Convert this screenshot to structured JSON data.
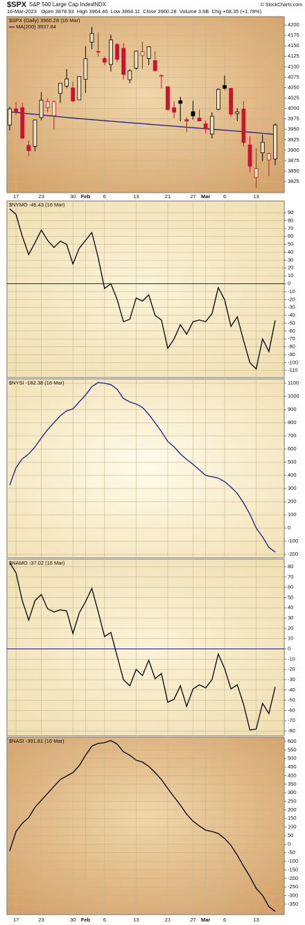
{
  "header": {
    "symbol": "$SPX",
    "name": "S&P 500 Large Cap Index",
    "exchange": "INDX",
    "credit": "© StockCharts.com",
    "quote": "16-Mar-2023   Open 3878.93  High 3964.46  Low 3864.11  Close 3960.28  Volume 3.6B  Chg +68.35 (+1.78%)"
  },
  "chart_data": [
    {
      "type": "candlestick",
      "legend": "$SPX (Daily) 3960.28 (16 Mar)",
      "categories": [
        null,
        "17",
        null,
        null,
        null,
        "23",
        null,
        null,
        null,
        null,
        "30",
        null,
        "Feb",
        null,
        null,
        "6",
        null,
        null,
        null,
        null,
        "13",
        null,
        null,
        null,
        null,
        "21",
        null,
        null,
        null,
        "27",
        null,
        "Mar",
        null,
        null,
        "6",
        null,
        null,
        null,
        null,
        "13",
        null,
        null,
        null
      ],
      "open": [
        3960.6,
        3999.28,
        4002.25,
        3911.84,
        3909.04,
        3978.14,
        4001.74,
        3982.71,
        4036.08,
        4053.72,
        4049.27,
        4020.85,
        4070.07,
        4158.68,
        4136.69,
        4119.57,
        4105.35,
        4153.47,
        4144.25,
        4068.92,
        4096.62,
        4126.7,
        4119.5,
        4114.75,
        4077.39,
        4052.35,
        4001.83,
        4018.6,
        3973.24,
        3992.36,
        3977.19,
        3963.34,
        3938.68,
        3998.02,
        4055.15,
        4048.26,
        3987.55,
        3998.66,
        3912.77,
        3835.12,
        3894.01,
        3876.74,
        3878.93
      ],
      "high": [
        4003.95,
        4015.39,
        4014.16,
        3922.94,
        3972.96,
        4039.31,
        4023.92,
        4019.55,
        4061.57,
        4094.21,
        4063.85,
        4077.16,
        4148.95,
        4195.44,
        4182.36,
        4124.63,
        4176.54,
        4156.85,
        4156.23,
        4094.36,
        4138.9,
        4159.77,
        4148.11,
        4136.54,
        4081.51,
        4052.35,
        4017.37,
        4028.3,
        3978.25,
        4018.05,
        3997.5,
        3971.73,
        3990.84,
        4048.29,
        4078.49,
        4050,
        4000.41,
        4017.81,
        3934.05,
        3905.05,
        3937.29,
        3894.26,
        3964.46
      ],
      "low": [
        3947.67,
        3984.57,
        3926.59,
        3885.54,
        3897.86,
        3971.64,
        3989.79,
        3949.06,
        4013.29,
        4048.7,
        4015.55,
        4020.44,
        4037.2,
        4141.88,
        4123.36,
        4103.98,
        4088.39,
        4111.67,
        4069.67,
        4060.79,
        4092.67,
        4095.01,
        4103.98,
        4089.43,
        4047.95,
        3995.19,
        3976.9,
        3969.19,
        3943.08,
        3973.55,
        3968.98,
        3939.05,
        3928.16,
        3995.17,
        4044.61,
        3980.31,
        3969.76,
        3908.7,
        3846.32,
        3808.86,
        3873.63,
        3838.24,
        3864.11
      ],
      "close": [
        3999.09,
        3990.97,
        3928.86,
        3898.85,
        3972.61,
        4019.81,
        4016.95,
        4016.22,
        4060.43,
        4070.56,
        4017.77,
        4076.6,
        4119.21,
        4179.76,
        4136.48,
        4111.08,
        4164,
        4117.86,
        4081.5,
        4090.46,
        4137.29,
        4136.13,
        4147.6,
        4090.41,
        4079.09,
        3997.34,
        3991.05,
        4012.32,
        3970.04,
        3982.24,
        3970.15,
        3951.39,
        3981.35,
        4045.64,
        4048.42,
        3986.37,
        3992.01,
        3918.32,
        3861.59,
        3855.76,
        3919.29,
        3891.93,
        3960.28
      ],
      "up_color": "#000000",
      "down_color": "#d0122c",
      "series": [
        {
          "name": "MA(200) 3937.84",
          "color": "#1c1c8c",
          "values": [
            3992,
            3990.5,
            3989,
            3987.5,
            3986,
            3984.5,
            3983,
            3981.5,
            3980,
            3978.6,
            3977.2,
            3975.8,
            3974.5,
            3973.2,
            3972,
            3970.8,
            3969.6,
            3968.4,
            3967.2,
            3966,
            3964.8,
            3963.6,
            3962.4,
            3961.2,
            3960,
            3958.8,
            3957.6,
            3956.4,
            3955.2,
            3954,
            3952.8,
            3951.6,
            3950.4,
            3949.2,
            3948,
            3946.8,
            3945.6,
            3944.4,
            3943.2,
            3942,
            3940.6,
            3939.2,
            3937.84
          ]
        }
      ],
      "ylim": [
        3798.5,
        4220
      ],
      "yticks": [
        3825,
        3850,
        3875,
        3900,
        3925,
        3950,
        3975,
        4000,
        4025,
        4050,
        4075,
        4100,
        4125,
        4150,
        4175,
        4200
      ],
      "grid": true
    },
    {
      "type": "line",
      "series": [
        {
          "name": "$NYMO -46.43 (16 Mar)",
          "color": "#000000",
          "values": [
            95,
            88,
            60,
            37,
            52,
            68,
            55,
            46,
            54,
            50,
            25,
            45,
            55,
            65,
            33,
            -6,
            0,
            -20,
            -48,
            -45,
            -18,
            -22,
            -14,
            -40,
            -46,
            -82,
            -70,
            -52,
            -64,
            -48,
            -46,
            -48,
            -38,
            -5,
            -20,
            -54,
            -42,
            -72,
            -100,
            -108,
            -70,
            -86,
            -46.43
          ]
        }
      ],
      "ylim": [
        -119,
        105
      ],
      "yticks": [
        -110,
        -100,
        -90,
        -80,
        -70,
        -60,
        -50,
        -40,
        -30,
        -20,
        -10,
        0,
        10,
        20,
        30,
        40,
        50,
        60,
        70,
        80,
        90
      ],
      "grid": true,
      "zero_line": true
    },
    {
      "type": "line",
      "series": [
        {
          "name": "$NYSI -182.38 (16 Mar)",
          "color": "#1c1c8c",
          "values": [
            326,
            458,
            526,
            563,
            616,
            684,
            747,
            800,
            853,
            890,
            905,
            958,
            1010,
            1074,
            1105,
            1100,
            1090,
            1053,
            984,
            958,
            942,
            916,
            863,
            800,
            732,
            658,
            616,
            563,
            521,
            484,
            442,
            400,
            390,
            379,
            353,
            311,
            263,
            190,
            105,
            0,
            -68,
            -147,
            -182.38
          ]
        }
      ],
      "ylim": [
        -226,
        1132
      ],
      "yticks": [
        -200,
        -100,
        0,
        100,
        200,
        300,
        400,
        500,
        600,
        700,
        800,
        900,
        1000,
        1100
      ],
      "grid": true
    },
    {
      "type": "line",
      "series": [
        {
          "name": "$NAMO -37.02 (16 Mar)",
          "color": "#000000",
          "values": [
            84,
            74,
            47,
            28,
            47,
            53,
            39,
            36,
            38,
            37,
            15,
            35,
            46,
            59,
            36,
            12,
            16,
            -7,
            -30,
            -36,
            -20,
            -26,
            -11,
            -29,
            -24,
            -52,
            -49,
            -36,
            -56,
            -39,
            -35,
            -38,
            -30,
            -5,
            -19,
            -39,
            -35,
            -54,
            -79,
            -78,
            -53,
            -63,
            -37.02
          ]
        }
      ],
      "ylim": [
        -84.7,
        87.4
      ],
      "yticks": [
        -80,
        -70,
        -60,
        -50,
        -40,
        -30,
        -20,
        -10,
        0,
        10,
        20,
        30,
        40,
        50,
        60,
        70,
        80
      ],
      "grid": true,
      "zero_line": true
    },
    {
      "type": "line",
      "series": [
        {
          "name": "$NASI -391.81 (16 Mar)",
          "color": "#000000",
          "values": [
            -40,
            74,
            122,
            155,
            215,
            256,
            296,
            337,
            377,
            398,
            418,
            458,
            519,
            572,
            588,
            592,
            605,
            584,
            539,
            519,
            490,
            479,
            454,
            418,
            377,
            325,
            276,
            228,
            175,
            134,
            106,
            82,
            74,
            62,
            33,
            -7,
            -64,
            -129,
            -189,
            -258,
            -299,
            -364,
            -391.81
          ]
        }
      ],
      "ylim": [
        -411,
        624
      ],
      "yticks": [
        -350,
        -300,
        -250,
        -200,
        -150,
        -100,
        -50,
        0,
        50,
        100,
        150,
        200,
        250,
        300,
        350,
        400,
        450,
        500,
        550,
        600
      ],
      "grid": true
    }
  ]
}
